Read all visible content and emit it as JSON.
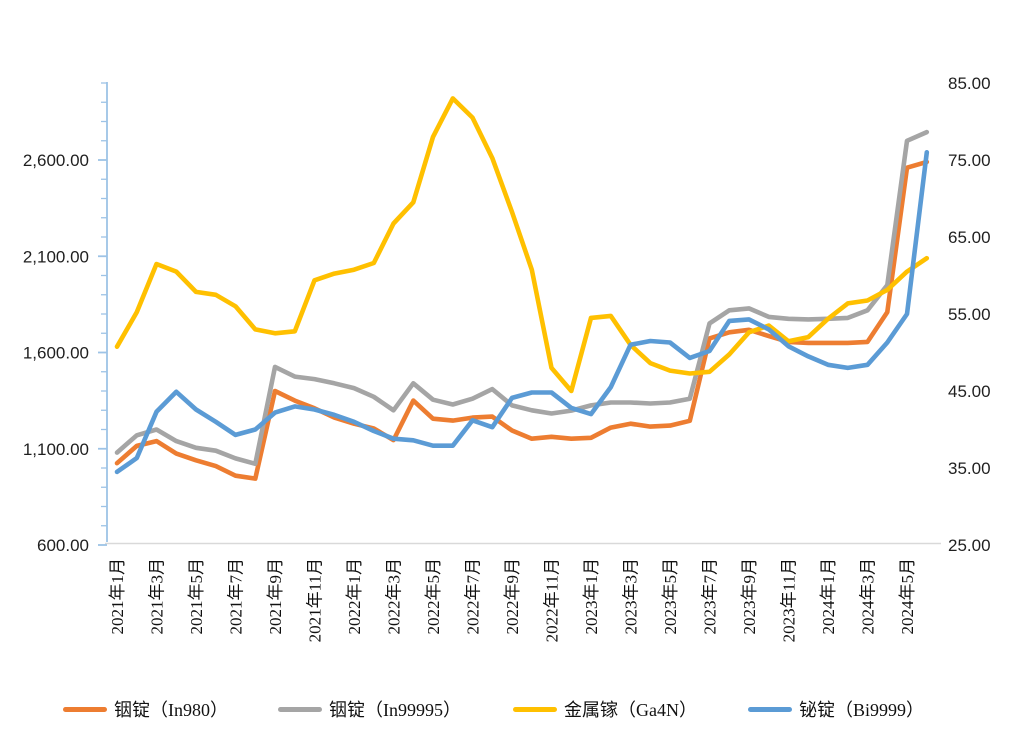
{
  "chart_data": {
    "type": "line",
    "x": [
      "2021年1月",
      "2021年2月",
      "2021年3月",
      "2021年4月",
      "2021年5月",
      "2021年6月",
      "2021年7月",
      "2021年8月",
      "2021年9月",
      "2021年10月",
      "2021年11月",
      "2021年12月",
      "2022年1月",
      "2022年2月",
      "2022年3月",
      "2022年4月",
      "2022年5月",
      "2022年6月",
      "2022年7月",
      "2022年8月",
      "2022年9月",
      "2022年10月",
      "2022年11月",
      "2022年12月",
      "2023年1月",
      "2023年2月",
      "2023年3月",
      "2023年4月",
      "2023年5月",
      "2023年6月",
      "2023年7月",
      "2023年8月",
      "2023年9月",
      "2023年10月",
      "2023年11月",
      "2023年12月",
      "2024年1月",
      "2024年2月",
      "2024年3月",
      "2024年4月",
      "2024年5月",
      "2024年6月"
    ],
    "x_tick_labels_shown": [
      "2021年1月",
      "2021年3月",
      "2021年5月",
      "2021年7月",
      "2021年9月",
      "2021年11月",
      "2022年1月",
      "2022年3月",
      "2022年5月",
      "2022年7月",
      "2022年9月",
      "2022年11月",
      "2023年1月",
      "2023年3月",
      "2023年5月",
      "2023年7月",
      "2023年9月",
      "2023年11月",
      "2024年1月",
      "2024年3月",
      "2024年5月"
    ],
    "series": [
      {
        "name": "铟锭（In980）",
        "axis": "left",
        "color": "#ED7D31",
        "values": [
          1025,
          1115,
          1140,
          1075,
          1040,
          1010,
          960,
          945,
          1400,
          1350,
          1310,
          1262,
          1230,
          1205,
          1145,
          1350,
          1256,
          1246,
          1262,
          1267,
          1195,
          1152,
          1162,
          1152,
          1157,
          1210,
          1230,
          1215,
          1220,
          1245,
          1673,
          1705,
          1718,
          1685,
          1655,
          1650,
          1650,
          1650,
          1655,
          1810,
          2560,
          2590
        ]
      },
      {
        "name": "铟锭（In99995）",
        "axis": "left",
        "color": "#A5A5A5",
        "values": [
          1080,
          1170,
          1200,
          1140,
          1105,
          1090,
          1050,
          1022,
          1525,
          1475,
          1462,
          1440,
          1415,
          1370,
          1300,
          1440,
          1355,
          1330,
          1360,
          1410,
          1325,
          1300,
          1283,
          1298,
          1325,
          1340,
          1340,
          1335,
          1340,
          1360,
          1751,
          1819,
          1829,
          1785,
          1775,
          1772,
          1775,
          1780,
          1819,
          1950,
          2700,
          2745
        ]
      },
      {
        "name": "金属镓（Ga4N）",
        "axis": "left",
        "color": "#FFC000",
        "values": [
          1630,
          1810,
          2060,
          2020,
          1915,
          1900,
          1840,
          1720,
          1700,
          1710,
          1975,
          2010,
          2030,
          2065,
          2270,
          2380,
          2720,
          2920,
          2820,
          2610,
          2330,
          2030,
          1520,
          1400,
          1780,
          1790,
          1640,
          1545,
          1506,
          1491,
          1500,
          1590,
          1705,
          1740,
          1658,
          1680,
          1775,
          1855,
          1870,
          1925,
          2020,
          2090
        ]
      },
      {
        "name": "铋锭（Bi9999）",
        "axis": "right",
        "color": "#5B9BD5",
        "values": [
          34.5,
          36.3,
          42.3,
          44.9,
          42.6,
          41.0,
          39.3,
          40.0,
          42.2,
          43.0,
          42.6,
          41.9,
          41.0,
          39.8,
          38.8,
          38.6,
          37.9,
          37.9,
          41.2,
          40.3,
          44.1,
          44.8,
          44.8,
          42.8,
          42.0,
          45.5,
          51.0,
          51.5,
          51.3,
          49.3,
          50.2,
          54.1,
          54.3,
          53.0,
          50.8,
          49.5,
          48.4,
          48.0,
          48.4,
          51.3,
          55.0,
          76.0
        ]
      }
    ],
    "left_axis": {
      "min": 600,
      "max": 3000,
      "minor_tick_step": 100,
      "label_step": 500,
      "labels": [
        "600.00",
        "1,100.00",
        "1,600.00",
        "2,100.00",
        "2,600.00"
      ]
    },
    "right_axis": {
      "min": 25,
      "max": 85,
      "label_step": 10,
      "labels": [
        "25.00",
        "35.00",
        "45.00",
        "55.00",
        "65.00",
        "75.00",
        "85.00"
      ]
    },
    "grid": false,
    "legend_position": "bottom"
  },
  "legend": {
    "items": [
      {
        "label": "铟锭（In980）",
        "color": "#ED7D31"
      },
      {
        "label": "铟锭（In99995）",
        "color": "#A5A5A5"
      },
      {
        "label": "金属镓（Ga4N）",
        "color": "#FFC000"
      },
      {
        "label": "铋锭（Bi9999）",
        "color": "#5B9BD5"
      }
    ]
  },
  "colors": {
    "left_axis_line": "#9DC3E6",
    "bottom_axis_line": "#D9D9D9",
    "background": "#FFFFFF"
  }
}
